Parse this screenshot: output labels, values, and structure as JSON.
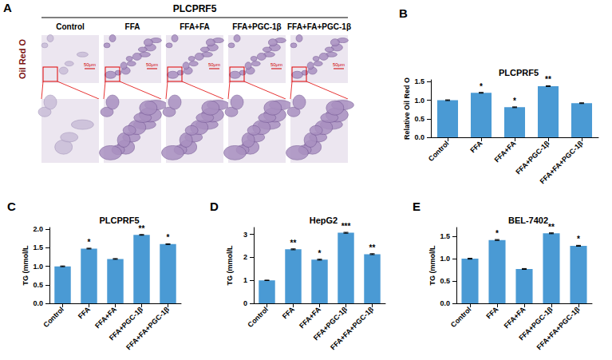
{
  "image_panel": {
    "panel": "A",
    "title": "PLCPRF5",
    "row_label": "Oil Red O",
    "columns": [
      "Control",
      "FFA",
      "FFA+FA",
      "FFA+PGC-1β",
      "FFA+FA+PGC-1β"
    ],
    "scale_bar_label": "50μm"
  },
  "chart_data": [
    {
      "panel": "B",
      "type": "bar",
      "title": "PLCPRF5",
      "y_label": "Relative Oil Red O",
      "categories": [
        "Control",
        "FFA",
        "FFA+FA",
        "FFA+PGC-1β",
        "FFA+FA+PGC-1β"
      ],
      "values": [
        1.0,
        1.2,
        0.81,
        1.38,
        0.92
      ],
      "errors": [
        0.01,
        0.01,
        0.01,
        0.01,
        0.01
      ],
      "annotations": [
        null,
        "*",
        "*",
        "**",
        null
      ],
      "color": "#4a9ad4",
      "ylim": [
        0,
        1.55
      ],
      "yticks": [
        {
          "value": 0,
          "label": "0.0"
        },
        {
          "value": 0.5,
          "label": "0.5"
        },
        {
          "value": 1,
          "label": "1.0"
        },
        {
          "value": 1.5,
          "label": "1.5"
        }
      ],
      "grid": false
    },
    {
      "panel": "C",
      "type": "bar",
      "title": "PLCPRF5",
      "y_label": "TG (mmol/L",
      "categories": [
        "Control",
        "FFA",
        "FFA+FA",
        "FFA+PGC-1β",
        "FFA+FA+PGC-1β"
      ],
      "values": [
        1.0,
        1.48,
        1.2,
        1.85,
        1.6
      ],
      "errors": [
        0.01,
        0.01,
        0.01,
        0.01,
        0.01
      ],
      "annotations": [
        null,
        "*",
        null,
        "**",
        "*"
      ],
      "color": "#4a9ad4",
      "ylim": [
        0,
        2.05
      ],
      "yticks": [
        {
          "value": 0,
          "label": "0.0"
        },
        {
          "value": 0.5,
          "label": "0.5"
        },
        {
          "value": 1,
          "label": "1.0"
        },
        {
          "value": 1.5,
          "label": "1.5"
        },
        {
          "value": 2,
          "label": "2.0"
        }
      ],
      "grid": false
    },
    {
      "panel": "D",
      "type": "bar",
      "title": "HepG2",
      "y_label": "TG (mmol/L",
      "categories": [
        "Control",
        "FFA",
        "FFA+FA",
        "FFA+PGC-1β",
        "FFA+FA+PGC-1β"
      ],
      "values": [
        1.0,
        2.35,
        1.9,
        3.07,
        2.14
      ],
      "errors": [
        0.01,
        0.02,
        0.02,
        0.02,
        0.02
      ],
      "annotations": [
        null,
        "**",
        "*",
        "***",
        "**"
      ],
      "color": "#4a9ad4",
      "ylim": [
        0,
        3.3
      ],
      "yticks": [
        0,
        1,
        2,
        3
      ],
      "grid": false
    },
    {
      "panel": "E",
      "type": "bar",
      "title": "BEL-7402",
      "y_label": "TG (mmol/L",
      "categories": [
        "Control",
        "FFA",
        "FFA+FA",
        "FFA+PGC-1β",
        "FFA+FA+PGC-1β"
      ],
      "values": [
        1.0,
        1.42,
        0.77,
        1.57,
        1.29
      ],
      "errors": [
        0.01,
        0.01,
        0.01,
        0.01,
        0.01
      ],
      "annotations": [
        null,
        "*",
        null,
        "**",
        "*"
      ],
      "color": "#4a9ad4",
      "ylim": [
        0,
        1.7
      ],
      "yticks": [
        {
          "value": 0,
          "label": "0.0"
        },
        {
          "value": 0.5,
          "label": "0.5"
        },
        {
          "value": 1,
          "label": "1.0"
        },
        {
          "value": 1.5,
          "label": "1.5"
        }
      ],
      "grid": false
    }
  ]
}
